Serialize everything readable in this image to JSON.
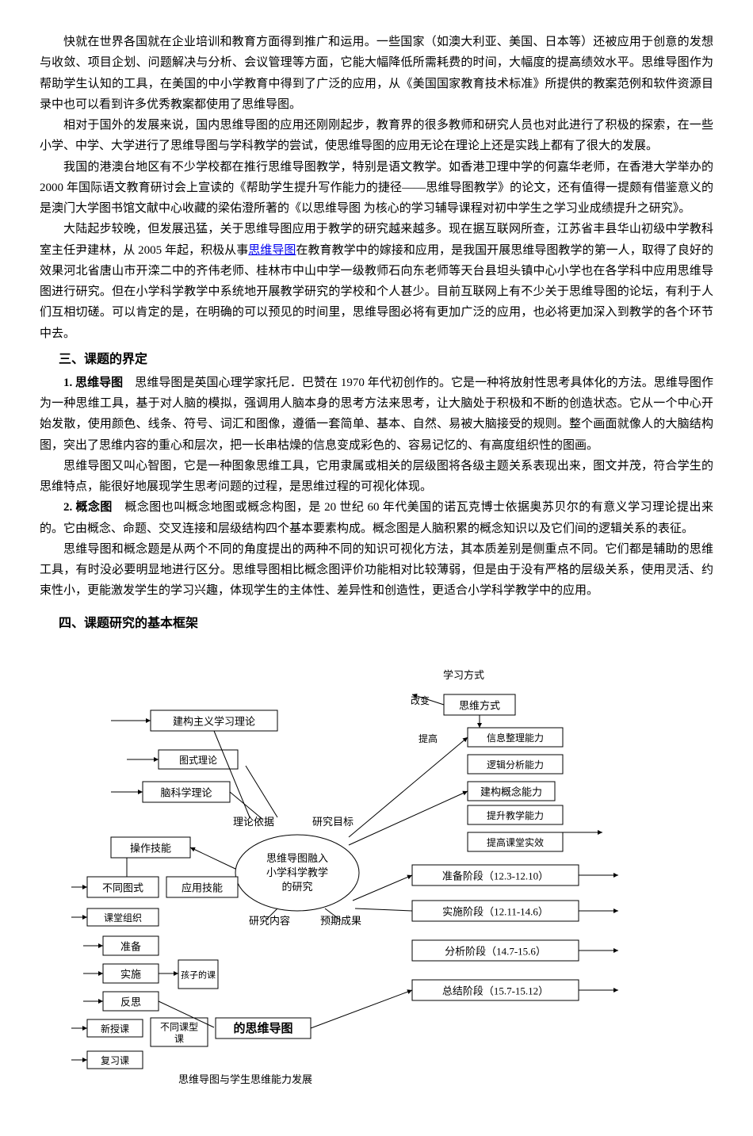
{
  "p1": "快就在世界各国就在企业培训和教育方面得到推广和运用。一些国家（如澳大利亚、美国、日本等）还被应用于创意的发想与收敛、项目企划、问题解决与分析、会议管理等方面，它能大幅降低所需耗费的时间，大幅度的提高绩效水平。思维导图作为帮助学生认知的工具，在美国的中小学教育中得到了广泛的应用，从《美国国家教育技术标准》所提供的教案范例和软件资源目录中也可以看到许多优秀教案都使用了思维导图。",
  "p2": "相对于国外的发展来说，国内思维导图的应用还刚刚起步，教育界的很多教师和研究人员也对此进行了积极的探索，在一些小学、中学、大学进行了思维导图与学科教学的尝试，使思维导图的应用无论在理论上还是实践上都有了很大的发展。",
  "p3": "我国的港澳台地区有不少学校都在推行思维导图教学，特别是语文教学。如香港卫理中学的何嘉华老师，在香港大学举办的 2000 年国际语文教育研讨会上宣读的《帮助学生提升写作能力的捷径——思维导图教学》的论文，还有值得一提颇有借鉴意义的是澳门大学图书馆文献中心收藏的梁佑澄所著的《以思维导图 为核心的学习辅导课程对初中学生之学习业成绩提升之研究》。",
  "p4a": "大陆起步较晚，但发展迅猛，关于思维导图应用于教学的研究越来越多。现在据互联网所查，江苏省丰县华山初级中学教科室主任尹建林，从 2005 年起，积极从事",
  "p4_link": "思维导图",
  "p4b": "在教育教学中的嫁接和应用，是我国开展思维导图教学的第一人，取得了良好的效果河北省唐山市开滦二中的齐伟老师、桂林市中山中学一级教师石向东老师等天台县坦头镇中心小学也在各学科中应用思维导图进行研究。但在小学科学教学中系统地开展教学研究的学校和个人甚少。目前互联网上有不少关于思维导图的论坛，有利于人们互相切磋。可以肯定的是，在明确的可以预见的时间里，思维导图必将有更加广泛的应用，也必将更加深入到教学的各个环节中去。",
  "h3_1": "三、课题的界定",
  "s1_label": "1. 思维导图",
  "s1_text": "　思维导图是英国心理学家托尼．巴赞在 1970 年代初创作的。它是一种将放射性思考具体化的方法。思维导图作为一种思维工具，基于对人脑的模拟，强调用人脑本身的思考方法来思考，让大脑处于积极和不断的创造状态。它从一个中心开始发散，使用颜色、线条、符号、词汇和图像，遵循一套简单、基本、自然、易被大脑接受的规则。整个画面就像人的大脑结构图，突出了思维内容的重心和层次，把一长串枯燥的信息变成彩色的、容易记忆的、有高度组织性的图画。",
  "s1b": "思维导图又叫心智图，它是一种图象思维工具，它用隶属或相关的层级图将各级主题关系表现出来，图文并茂，符合学生的思维特点，能很好地展现学生思考问题的过程，是思维过程的可视化体现。",
  "s2_label": "2. 概念图",
  "s2_text": "　概念图也叫概念地图或概念构图，是 20 世纪 60 年代美国的诺瓦克博士依据奥苏贝尔的有意义学习理论提出来的。它由概念、命题、交叉连接和层级结构四个基本要素构成。概念图是人脑积累的概念知识以及它们间的逻辑关系的表征。",
  "s2b": "思维导图和概念题是从两个不同的角度提出的两种不同的知识可视化方法，其本质差别是侧重点不同。它们都是辅助的思维工具，有时没必要明显地进行区分。思维导图相比概念图评价功能相对比较薄弱，但是由于没有严格的层级关系，使用灵活、约束性小，更能激发学生的学习兴趣，体现学生的主体性、差异性和创造性，更适合小学科学教学中的应用。",
  "h3_2": "四、课题研究的基本框架",
  "d": {
    "center_l1": "思维导图融入",
    "center_l2": "小学科学教学",
    "center_l3": "的研究",
    "theory_basis": "理论依据",
    "research_target": "研究目标",
    "research_content": "研究内容",
    "expected": "预期成果",
    "study_mode": "学习方式",
    "change": "改变",
    "think_mode": "思维方式",
    "improve": "提高",
    "info_ability": "信息整理能力",
    "logic_ability": "逻辑分析能力",
    "concept_ability": "建构概念能力",
    "teach_ability": "提升教学能力",
    "guide_ability": "提高课堂实效",
    "constructivism": "建构主义学习理论",
    "graph_theory": "图式理论",
    "brain_theory": "脑科学理论",
    "op_skill": "操作技能",
    "diff_graph": "不同图式",
    "app_skill": "应用技能",
    "class_org": "课堂组织",
    "prepare": "准备",
    "implement": "实施",
    "reflect": "反思",
    "new_lesson": "新授课",
    "diff_lesson": "不同课型",
    "mind_map_label": "的思维导图",
    "review": "复习课",
    "child": "孩子的课",
    "bottom": "思维导图与学生思维能力发展",
    "phase1": "准备阶段（12.3-12.10）",
    "phase2": "实施阶段（12.11-14.6）",
    "phase3": "分析阶段（14.7-15.6）",
    "phase4": "总结阶段（15.7-15.12）",
    "font": 13,
    "font_small": 12,
    "stroke": "#000",
    "fill": "#fff"
  }
}
